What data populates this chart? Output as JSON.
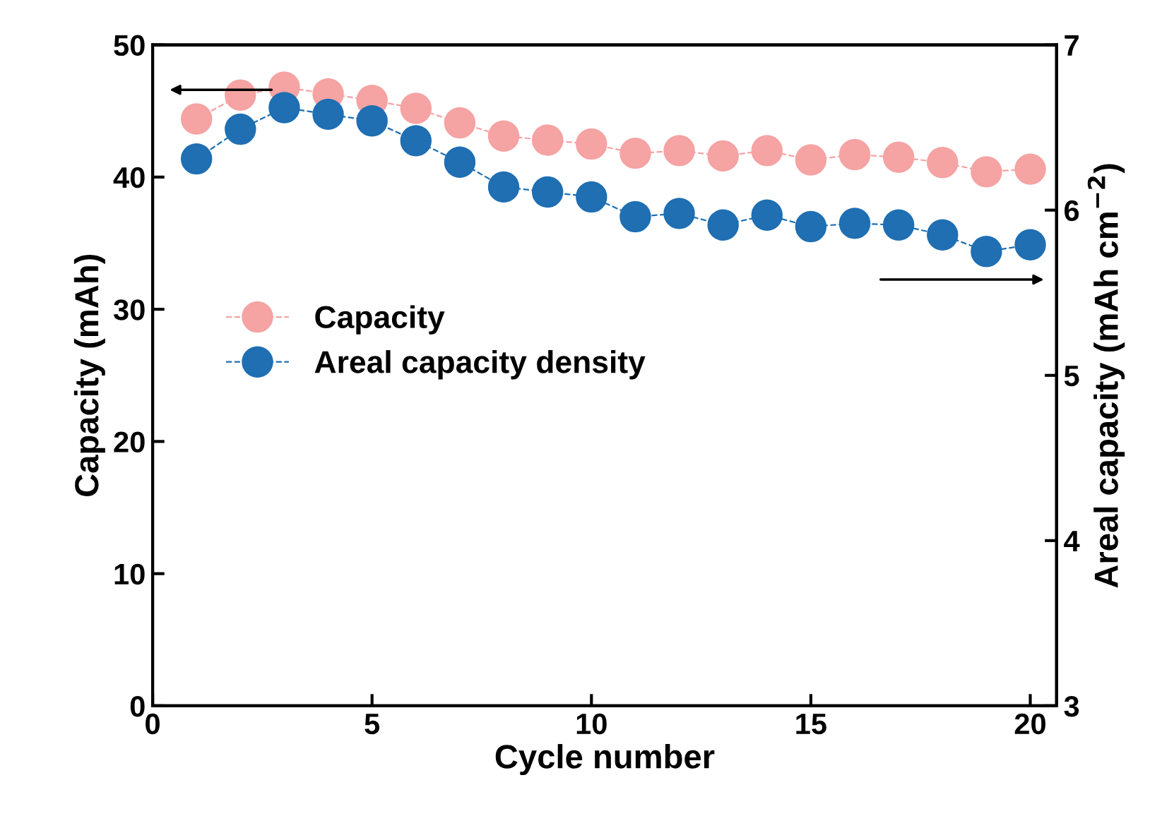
{
  "chart_data": {
    "type": "line",
    "xlabel": "Cycle number",
    "ylabel": "Capacity (mAh)",
    "y2label": "Areal capacity (mAh cm$^{−2}$)",
    "x": [
      1,
      2,
      3,
      4,
      5,
      6,
      7,
      8,
      9,
      10,
      11,
      12,
      13,
      14,
      15,
      16,
      17,
      18,
      19,
      20
    ],
    "xlim": [
      0,
      20.6
    ],
    "xticks": [
      0,
      5,
      10,
      15,
      20
    ],
    "ylim": [
      0,
      50
    ],
    "yticks": [
      0,
      10,
      20,
      30,
      40,
      50
    ],
    "y2lim": [
      3,
      7
    ],
    "y2ticks": [
      3,
      4,
      5,
      6,
      7
    ],
    "series": [
      {
        "name": "Capacity",
        "color": "#f5a3a3",
        "values": [
          44.4,
          46.2,
          46.8,
          46.3,
          45.8,
          45.2,
          44.1,
          43.1,
          42.8,
          42.5,
          41.8,
          42.0,
          41.6,
          42.0,
          41.3,
          41.7,
          41.5,
          41.1,
          40.4,
          40.6
        ]
      },
      {
        "name": "Areal capacity density",
        "color": "#1f6fb2",
        "axis": "y2",
        "values": [
          6.31,
          6.49,
          6.62,
          6.58,
          6.54,
          6.42,
          6.29,
          6.14,
          6.11,
          6.08,
          5.96,
          5.98,
          5.91,
          5.97,
          5.9,
          5.92,
          5.91,
          5.85,
          5.75,
          5.79
        ]
      }
    ],
    "marker": "circle",
    "line_style": "dashed",
    "grid": false,
    "legend": "center left"
  }
}
